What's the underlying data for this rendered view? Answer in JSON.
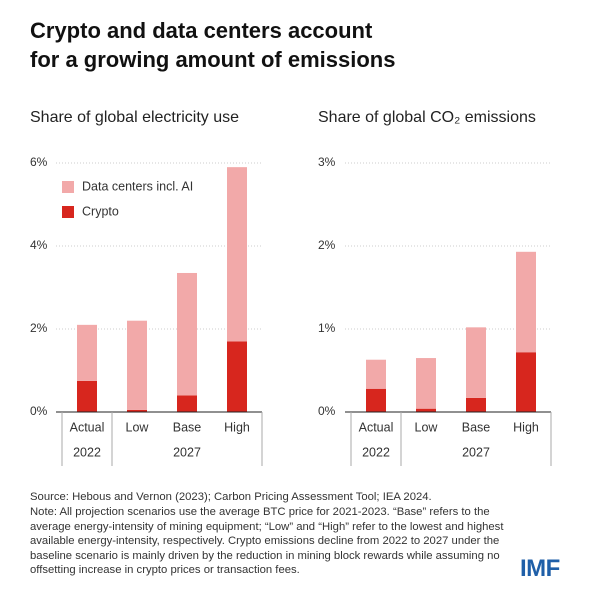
{
  "title": [
    "Crypto and data centers account",
    "for a growing amount of emissions"
  ],
  "chart_data": [
    {
      "type": "bar",
      "stacked": true,
      "title": "Share of global electricity use",
      "categories": [
        "Actual",
        "Low",
        "Base",
        "High"
      ],
      "groups": [
        "2022",
        "2027"
      ],
      "series": [
        {
          "name": "Data centers incl. AI",
          "color": "#f2a9a9",
          "values": [
            1.35,
            2.15,
            2.95,
            4.2
          ]
        },
        {
          "name": "Crypto",
          "color": "#d7261e",
          "values": [
            0.75,
            0.05,
            0.4,
            1.7
          ]
        }
      ],
      "ylim": [
        0,
        6
      ],
      "yticks": [
        {
          "value": 0,
          "label": "0%"
        },
        {
          "value": 2,
          "label": "2%"
        },
        {
          "value": 4,
          "label": "4%"
        },
        {
          "value": 6,
          "label": "6%"
        }
      ],
      "grid": true,
      "legend": "top-left"
    },
    {
      "type": "bar",
      "stacked": true,
      "title": "Share of global CO₂ emissions",
      "categories": [
        "Actual",
        "Low",
        "Base",
        "High"
      ],
      "groups": [
        "2022",
        "2027"
      ],
      "series": [
        {
          "color": "#f2a9a9",
          "values": [
            0.35,
            0.61,
            0.85,
            1.21
          ]
        },
        {
          "color": "#d7261e",
          "values": [
            0.28,
            0.04,
            0.17,
            0.72
          ]
        }
      ],
      "ylim": [
        0,
        3
      ],
      "yticks": [
        {
          "value": 0,
          "label": "0%"
        },
        {
          "value": 1,
          "label": "1%"
        },
        {
          "value": 2,
          "label": "2%"
        },
        {
          "value": 3,
          "label": "3%"
        }
      ],
      "grid": true
    }
  ],
  "source": "Source: Hebous and Vernon (2023); Carbon Pricing Assessment Tool; IEA 2024.",
  "note": "Note: All projection scenarios use the average BTC price for 2021-2023. “Base” refers to the average energy-intensity of mining equipment; “Low” and “High” refer to the lowest and highest available energy-intensity, respectively. Crypto emissions decline from 2022 to 2027 under the baseline scenario is mainly driven by the reduction in mining block rewards while assuming no offsetting increase in crypto prices or transaction fees.",
  "logo": "IMF"
}
